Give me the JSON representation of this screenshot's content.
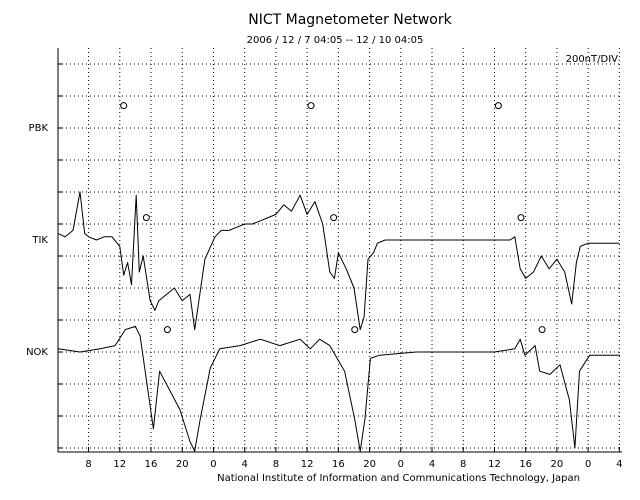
{
  "chart_data": {
    "type": "line",
    "title": "NICT Magnetometer Network",
    "subtitle": "2006 / 12 /  7   04:05 -- 12 / 10   04:05",
    "scale_label": "200nT/DIV",
    "footer": "National Institute of Information and Communications Technology, Japan",
    "xlim": [
      4.083,
      76.083
    ],
    "xticks": [
      8,
      12,
      16,
      20,
      {
        "value": 24,
        "label": "0"
      },
      {
        "value": 28,
        "label": "4"
      },
      {
        "value": 32,
        "label": "8"
      },
      {
        "value": 36,
        "label": "12"
      },
      {
        "value": 40,
        "label": "16"
      },
      {
        "value": 44,
        "label": "20"
      },
      {
        "value": 48,
        "label": "0"
      },
      {
        "value": 52,
        "label": "4"
      },
      {
        "value": 56,
        "label": "8"
      },
      {
        "value": 60,
        "label": "12"
      },
      {
        "value": 64,
        "label": "16"
      },
      {
        "value": 68,
        "label": "20"
      },
      {
        "value": 72,
        "label": "0"
      },
      {
        "value": 76,
        "label": "4"
      }
    ],
    "ylim": [
      0,
      12.5
    ],
    "yticks": [
      0,
      1,
      2,
      3,
      4,
      5,
      6,
      7,
      8,
      9,
      10,
      11,
      12
    ],
    "grid": true,
    "stations": [
      {
        "name": "PBK",
        "y": 10,
        "markers_x": [
          12.5,
          36.5,
          60.5
        ],
        "markers_y": 10.7
      },
      {
        "name": "TIK",
        "y": 6.5,
        "markers_x": [
          15.4,
          39.4,
          63.4
        ],
        "markers_y": 7.2
      },
      {
        "name": "NOK",
        "y": 3,
        "markers_x": [
          18.1,
          42.1,
          66.1
        ],
        "markers_y": 3.7
      }
    ],
    "series": [
      {
        "name": "TIK",
        "color": "#000000",
        "x": [
          4.1,
          5,
          6,
          6.9,
          7.5,
          8,
          9,
          10,
          11,
          12,
          12.5,
          13,
          13.5,
          14.1,
          14.5,
          15,
          15.9,
          16.5,
          17,
          18,
          19,
          20,
          21,
          21.6,
          22.9,
          24.2,
          25,
          26,
          27,
          28,
          29,
          30,
          31,
          32,
          33,
          34,
          35.1,
          36,
          37,
          38,
          38.9,
          39.5,
          40,
          41,
          42,
          42.8,
          43.3,
          43.8,
          44.5,
          45,
          46,
          50,
          54,
          58,
          62,
          62.6,
          63.3,
          64,
          65,
          66,
          67,
          68,
          69,
          69.9,
          70.5,
          71,
          72,
          74,
          76
        ],
        "values": [
          6.7,
          6.6,
          6.8,
          8.0,
          6.7,
          6.6,
          6.5,
          6.6,
          6.6,
          6.3,
          5.4,
          5.8,
          5.1,
          7.9,
          5.5,
          6.0,
          4.6,
          4.3,
          4.6,
          4.8,
          5.0,
          4.6,
          4.8,
          3.7,
          5.9,
          6.6,
          6.8,
          6.8,
          6.9,
          7.0,
          7.0,
          7.1,
          7.2,
          7.3,
          7.6,
          7.4,
          7.9,
          7.3,
          7.7,
          7.0,
          5.5,
          5.3,
          6.1,
          5.6,
          5.0,
          3.7,
          4.1,
          5.9,
          6.1,
          6.4,
          6.5,
          6.5,
          6.5,
          6.5,
          6.5,
          6.6,
          5.6,
          5.3,
          5.5,
          6.0,
          5.6,
          5.9,
          5.5,
          4.5,
          5.8,
          6.3,
          6.4,
          6.4,
          6.4
        ]
      },
      {
        "name": "NOK",
        "color": "#000000",
        "x": [
          4.1,
          6.9,
          9.5,
          11.4,
          12.7,
          14.0,
          14.6,
          15.6,
          16.3,
          17.1,
          18.4,
          19.7,
          21.0,
          21.6,
          22.3,
          23.6,
          24.8,
          27.4,
          30.0,
          32.5,
          35.1,
          36.4,
          37.6,
          38.9,
          40.8,
          42.1,
          42.8,
          43.4,
          44.1,
          45.3,
          50,
          55,
          60,
          62.6,
          63.3,
          63.9,
          65.2,
          65.8,
          67.1,
          68.4,
          69.6,
          70.3,
          70.9,
          72.2,
          76.1
        ],
        "values": [
          3.1,
          3.0,
          3.1,
          3.2,
          3.7,
          3.8,
          3.5,
          1.8,
          0.6,
          2.4,
          1.8,
          1.2,
          0.2,
          -0.1,
          0.9,
          2.5,
          3.1,
          3.2,
          3.4,
          3.2,
          3.4,
          3.1,
          3.4,
          3.2,
          2.4,
          0.9,
          -0.1,
          0.9,
          2.8,
          2.9,
          3.0,
          3.0,
          3.0,
          3.1,
          3.4,
          2.9,
          3.2,
          2.4,
          2.3,
          2.6,
          1.5,
          0.0,
          2.4,
          2.9,
          2.9
        ]
      }
    ]
  }
}
